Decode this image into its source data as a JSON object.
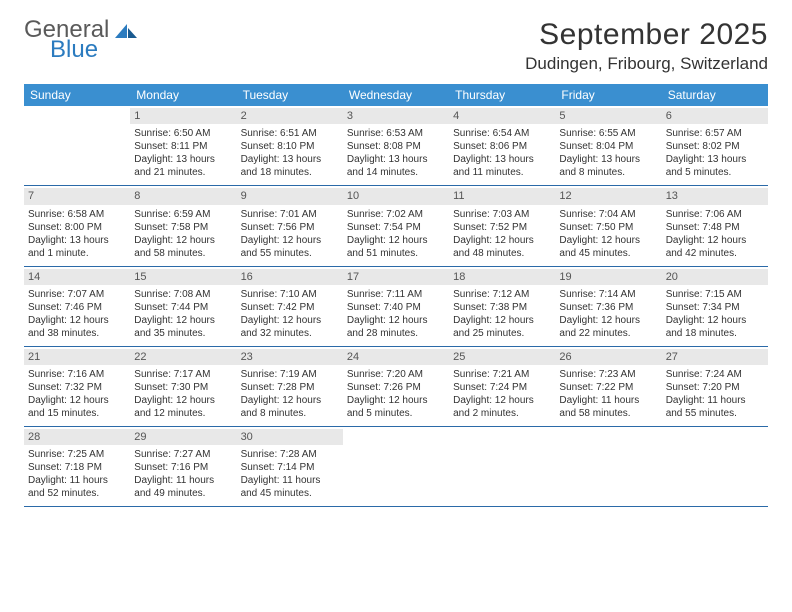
{
  "logo": {
    "text1": "General",
    "text2": "Blue"
  },
  "title": "September 2025",
  "location": "Dudingen, Fribourg, Switzerland",
  "weekdays": [
    "Sunday",
    "Monday",
    "Tuesday",
    "Wednesday",
    "Thursday",
    "Friday",
    "Saturday"
  ],
  "colors": {
    "header_bg": "#3a8fd0",
    "header_text": "#ffffff",
    "daynum_bg": "#e8e8e8",
    "week_border": "#2b6aa8",
    "body_text": "#333333",
    "logo_gray": "#5a5a5a",
    "logo_blue": "#2b7bbf"
  },
  "weeks": [
    [
      {
        "num": "",
        "sunrise": "",
        "sunset": "",
        "daylight": ""
      },
      {
        "num": "1",
        "sunrise": "Sunrise: 6:50 AM",
        "sunset": "Sunset: 8:11 PM",
        "daylight": "Daylight: 13 hours and 21 minutes."
      },
      {
        "num": "2",
        "sunrise": "Sunrise: 6:51 AM",
        "sunset": "Sunset: 8:10 PM",
        "daylight": "Daylight: 13 hours and 18 minutes."
      },
      {
        "num": "3",
        "sunrise": "Sunrise: 6:53 AM",
        "sunset": "Sunset: 8:08 PM",
        "daylight": "Daylight: 13 hours and 14 minutes."
      },
      {
        "num": "4",
        "sunrise": "Sunrise: 6:54 AM",
        "sunset": "Sunset: 8:06 PM",
        "daylight": "Daylight: 13 hours and 11 minutes."
      },
      {
        "num": "5",
        "sunrise": "Sunrise: 6:55 AM",
        "sunset": "Sunset: 8:04 PM",
        "daylight": "Daylight: 13 hours and 8 minutes."
      },
      {
        "num": "6",
        "sunrise": "Sunrise: 6:57 AM",
        "sunset": "Sunset: 8:02 PM",
        "daylight": "Daylight: 13 hours and 5 minutes."
      }
    ],
    [
      {
        "num": "7",
        "sunrise": "Sunrise: 6:58 AM",
        "sunset": "Sunset: 8:00 PM",
        "daylight": "Daylight: 13 hours and 1 minute."
      },
      {
        "num": "8",
        "sunrise": "Sunrise: 6:59 AM",
        "sunset": "Sunset: 7:58 PM",
        "daylight": "Daylight: 12 hours and 58 minutes."
      },
      {
        "num": "9",
        "sunrise": "Sunrise: 7:01 AM",
        "sunset": "Sunset: 7:56 PM",
        "daylight": "Daylight: 12 hours and 55 minutes."
      },
      {
        "num": "10",
        "sunrise": "Sunrise: 7:02 AM",
        "sunset": "Sunset: 7:54 PM",
        "daylight": "Daylight: 12 hours and 51 minutes."
      },
      {
        "num": "11",
        "sunrise": "Sunrise: 7:03 AM",
        "sunset": "Sunset: 7:52 PM",
        "daylight": "Daylight: 12 hours and 48 minutes."
      },
      {
        "num": "12",
        "sunrise": "Sunrise: 7:04 AM",
        "sunset": "Sunset: 7:50 PM",
        "daylight": "Daylight: 12 hours and 45 minutes."
      },
      {
        "num": "13",
        "sunrise": "Sunrise: 7:06 AM",
        "sunset": "Sunset: 7:48 PM",
        "daylight": "Daylight: 12 hours and 42 minutes."
      }
    ],
    [
      {
        "num": "14",
        "sunrise": "Sunrise: 7:07 AM",
        "sunset": "Sunset: 7:46 PM",
        "daylight": "Daylight: 12 hours and 38 minutes."
      },
      {
        "num": "15",
        "sunrise": "Sunrise: 7:08 AM",
        "sunset": "Sunset: 7:44 PM",
        "daylight": "Daylight: 12 hours and 35 minutes."
      },
      {
        "num": "16",
        "sunrise": "Sunrise: 7:10 AM",
        "sunset": "Sunset: 7:42 PM",
        "daylight": "Daylight: 12 hours and 32 minutes."
      },
      {
        "num": "17",
        "sunrise": "Sunrise: 7:11 AM",
        "sunset": "Sunset: 7:40 PM",
        "daylight": "Daylight: 12 hours and 28 minutes."
      },
      {
        "num": "18",
        "sunrise": "Sunrise: 7:12 AM",
        "sunset": "Sunset: 7:38 PM",
        "daylight": "Daylight: 12 hours and 25 minutes."
      },
      {
        "num": "19",
        "sunrise": "Sunrise: 7:14 AM",
        "sunset": "Sunset: 7:36 PM",
        "daylight": "Daylight: 12 hours and 22 minutes."
      },
      {
        "num": "20",
        "sunrise": "Sunrise: 7:15 AM",
        "sunset": "Sunset: 7:34 PM",
        "daylight": "Daylight: 12 hours and 18 minutes."
      }
    ],
    [
      {
        "num": "21",
        "sunrise": "Sunrise: 7:16 AM",
        "sunset": "Sunset: 7:32 PM",
        "daylight": "Daylight: 12 hours and 15 minutes."
      },
      {
        "num": "22",
        "sunrise": "Sunrise: 7:17 AM",
        "sunset": "Sunset: 7:30 PM",
        "daylight": "Daylight: 12 hours and 12 minutes."
      },
      {
        "num": "23",
        "sunrise": "Sunrise: 7:19 AM",
        "sunset": "Sunset: 7:28 PM",
        "daylight": "Daylight: 12 hours and 8 minutes."
      },
      {
        "num": "24",
        "sunrise": "Sunrise: 7:20 AM",
        "sunset": "Sunset: 7:26 PM",
        "daylight": "Daylight: 12 hours and 5 minutes."
      },
      {
        "num": "25",
        "sunrise": "Sunrise: 7:21 AM",
        "sunset": "Sunset: 7:24 PM",
        "daylight": "Daylight: 12 hours and 2 minutes."
      },
      {
        "num": "26",
        "sunrise": "Sunrise: 7:23 AM",
        "sunset": "Sunset: 7:22 PM",
        "daylight": "Daylight: 11 hours and 58 minutes."
      },
      {
        "num": "27",
        "sunrise": "Sunrise: 7:24 AM",
        "sunset": "Sunset: 7:20 PM",
        "daylight": "Daylight: 11 hours and 55 minutes."
      }
    ],
    [
      {
        "num": "28",
        "sunrise": "Sunrise: 7:25 AM",
        "sunset": "Sunset: 7:18 PM",
        "daylight": "Daylight: 11 hours and 52 minutes."
      },
      {
        "num": "29",
        "sunrise": "Sunrise: 7:27 AM",
        "sunset": "Sunset: 7:16 PM",
        "daylight": "Daylight: 11 hours and 49 minutes."
      },
      {
        "num": "30",
        "sunrise": "Sunrise: 7:28 AM",
        "sunset": "Sunset: 7:14 PM",
        "daylight": "Daylight: 11 hours and 45 minutes."
      },
      {
        "num": "",
        "sunrise": "",
        "sunset": "",
        "daylight": ""
      },
      {
        "num": "",
        "sunrise": "",
        "sunset": "",
        "daylight": ""
      },
      {
        "num": "",
        "sunrise": "",
        "sunset": "",
        "daylight": ""
      },
      {
        "num": "",
        "sunrise": "",
        "sunset": "",
        "daylight": ""
      }
    ]
  ]
}
